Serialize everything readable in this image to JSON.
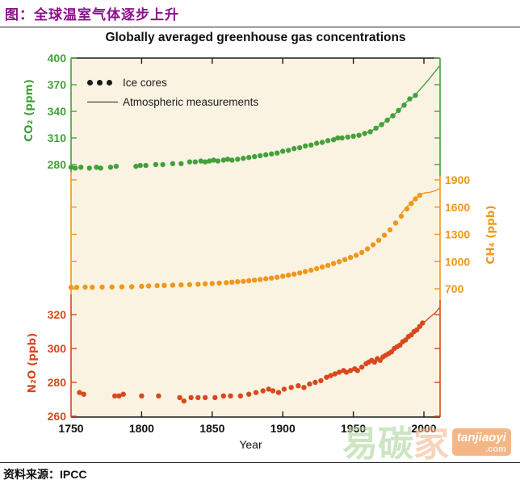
{
  "header": {
    "title": "图：全球温室气体逐步上升"
  },
  "source": {
    "label": "资料来源：",
    "value": "IPCC"
  },
  "watermark": {
    "char1": "易",
    "char2": "碳",
    "char3": "家",
    "site": "tanjiaoyi",
    "com": ".com"
  },
  "chart_data": {
    "type": "scatter",
    "title": "Globally averaged greenhouse gas concentrations",
    "xlabel": "Year",
    "x_range": [
      1750,
      2011.5
    ],
    "x_ticks": [
      1750,
      1800,
      1850,
      1900,
      1950,
      2000
    ],
    "grid": false,
    "legend_position": "top-left-inside",
    "legend": [
      {
        "label": "Ice cores",
        "marker": "dots"
      },
      {
        "label": "Atmospheric measurements",
        "marker": "line"
      }
    ],
    "plot_background": "#fbf3e2",
    "frame_colors": {
      "top": "#1a1a1a",
      "bottom": "#1a1a1a"
    },
    "series": [
      {
        "id": "CO2",
        "axis_label": "CO₂ (ppm)",
        "unit": "ppm",
        "color": "#43a13b",
        "tick_label_side": "left",
        "ticks": [
          280,
          310,
          340,
          370,
          400
        ],
        "ylim": [
          275,
          400
        ],
        "ice_cores": [
          [
            1750,
            277
          ],
          [
            1753,
            276
          ],
          [
            1757,
            277
          ],
          [
            1763,
            276
          ],
          [
            1768,
            277
          ],
          [
            1771,
            276
          ],
          [
            1778,
            277
          ],
          [
            1782,
            278
          ],
          [
            1796,
            278
          ],
          [
            1799,
            279
          ],
          [
            1803,
            279
          ],
          [
            1810,
            280
          ],
          [
            1815,
            280
          ],
          [
            1822,
            281
          ],
          [
            1828,
            281
          ],
          [
            1834,
            283
          ],
          [
            1838,
            283
          ],
          [
            1842,
            284
          ],
          [
            1845,
            283
          ],
          [
            1848,
            284
          ],
          [
            1851,
            285
          ],
          [
            1854,
            284
          ],
          [
            1858,
            285
          ],
          [
            1861,
            286
          ],
          [
            1864,
            285
          ],
          [
            1868,
            286
          ],
          [
            1872,
            287
          ],
          [
            1876,
            288
          ],
          [
            1880,
            289
          ],
          [
            1884,
            290
          ],
          [
            1888,
            291
          ],
          [
            1892,
            292
          ],
          [
            1896,
            293
          ],
          [
            1900,
            295
          ],
          [
            1904,
            296
          ],
          [
            1908,
            298
          ],
          [
            1912,
            299
          ],
          [
            1916,
            301
          ],
          [
            1920,
            302
          ],
          [
            1924,
            304
          ],
          [
            1928,
            305
          ],
          [
            1932,
            307
          ],
          [
            1936,
            308
          ],
          [
            1939,
            310
          ],
          [
            1942,
            310
          ],
          [
            1946,
            311
          ],
          [
            1950,
            312
          ],
          [
            1954,
            313
          ],
          [
            1958,
            315
          ],
          [
            1962,
            317
          ],
          [
            1966,
            321
          ],
          [
            1970,
            325
          ],
          [
            1974,
            330
          ],
          [
            1978,
            335
          ],
          [
            1982,
            341
          ],
          [
            1986,
            347
          ],
          [
            1990,
            354
          ],
          [
            1994,
            358
          ]
        ],
        "atmospheric": [
          [
            1958,
            315
          ],
          [
            1963,
            318
          ],
          [
            1968,
            323
          ],
          [
            1973,
            329
          ],
          [
            1978,
            335
          ],
          [
            1983,
            342
          ],
          [
            1988,
            351
          ],
          [
            1993,
            357
          ],
          [
            1998,
            366
          ],
          [
            2003,
            375
          ],
          [
            2008,
            385
          ],
          [
            2011,
            391
          ]
        ]
      },
      {
        "id": "CH4",
        "axis_label": "CH₄ (ppb)",
        "unit": "ppb",
        "color": "#f0971c",
        "tick_label_side": "right",
        "ticks": [
          700,
          1000,
          1300,
          1600,
          1900
        ],
        "ylim": [
          650,
          1900
        ],
        "ice_cores": [
          [
            1750,
            715
          ],
          [
            1754,
            716
          ],
          [
            1760,
            718
          ],
          [
            1765,
            717
          ],
          [
            1772,
            719
          ],
          [
            1779,
            720
          ],
          [
            1786,
            721
          ],
          [
            1793,
            722
          ],
          [
            1800,
            728
          ],
          [
            1805,
            731
          ],
          [
            1811,
            735
          ],
          [
            1816,
            737
          ],
          [
            1822,
            740
          ],
          [
            1828,
            743
          ],
          [
            1834,
            746
          ],
          [
            1840,
            750
          ],
          [
            1845,
            754
          ],
          [
            1850,
            758
          ],
          [
            1855,
            763
          ],
          [
            1860,
            768
          ],
          [
            1864,
            773
          ],
          [
            1868,
            778
          ],
          [
            1872,
            783
          ],
          [
            1876,
            789
          ],
          [
            1880,
            795
          ],
          [
            1884,
            802
          ],
          [
            1888,
            810
          ],
          [
            1892,
            818
          ],
          [
            1896,
            827
          ],
          [
            1900,
            838
          ],
          [
            1904,
            850
          ],
          [
            1908,
            862
          ],
          [
            1912,
            875
          ],
          [
            1916,
            890
          ],
          [
            1920,
            905
          ],
          [
            1924,
            922
          ],
          [
            1928,
            940
          ],
          [
            1932,
            958
          ],
          [
            1936,
            978
          ],
          [
            1940,
            1000
          ],
          [
            1944,
            1022
          ],
          [
            1948,
            1045
          ],
          [
            1952,
            1070
          ],
          [
            1956,
            1100
          ],
          [
            1960,
            1140
          ],
          [
            1964,
            1185
          ],
          [
            1968,
            1235
          ],
          [
            1972,
            1290
          ],
          [
            1976,
            1350
          ],
          [
            1980,
            1425
          ],
          [
            1984,
            1500
          ],
          [
            1988,
            1580
          ],
          [
            1991,
            1640
          ],
          [
            1994,
            1690
          ],
          [
            1997,
            1730
          ]
        ],
        "atmospheric": [
          [
            1984,
            1530
          ],
          [
            1988,
            1605
          ],
          [
            1992,
            1668
          ],
          [
            1996,
            1722
          ],
          [
            2000,
            1755
          ],
          [
            2004,
            1763
          ],
          [
            2008,
            1780
          ],
          [
            2011,
            1803
          ]
        ]
      },
      {
        "id": "N2O",
        "axis_label": "N₂O (ppb)",
        "unit": "ppb",
        "color": "#d9481c",
        "tick_label_side": "left",
        "ticks": [
          260,
          280,
          300,
          320
        ],
        "ylim": [
          260,
          325
        ],
        "ice_cores": [
          [
            1756,
            274
          ],
          [
            1759,
            273
          ],
          [
            1781,
            272
          ],
          [
            1784,
            272
          ],
          [
            1787,
            273
          ],
          [
            1800,
            272
          ],
          [
            1812,
            272
          ],
          [
            1827,
            271
          ],
          [
            1830,
            269
          ],
          [
            1835,
            271
          ],
          [
            1840,
            271
          ],
          [
            1845,
            271
          ],
          [
            1852,
            271
          ],
          [
            1858,
            272
          ],
          [
            1863,
            272
          ],
          [
            1870,
            272
          ],
          [
            1876,
            273
          ],
          [
            1881,
            274
          ],
          [
            1886,
            275
          ],
          [
            1890,
            276
          ],
          [
            1893,
            275
          ],
          [
            1897,
            274
          ],
          [
            1901,
            276
          ],
          [
            1906,
            277
          ],
          [
            1911,
            278
          ],
          [
            1915,
            277
          ],
          [
            1919,
            279
          ],
          [
            1923,
            280
          ],
          [
            1927,
            281
          ],
          [
            1931,
            283
          ],
          [
            1934,
            284
          ],
          [
            1937,
            285
          ],
          [
            1940,
            286
          ],
          [
            1943,
            287
          ],
          [
            1945,
            286
          ],
          [
            1948,
            287
          ],
          [
            1951,
            288
          ],
          [
            1953,
            287
          ],
          [
            1956,
            289
          ],
          [
            1959,
            291
          ],
          [
            1961,
            292
          ],
          [
            1963,
            293
          ],
          [
            1965,
            292
          ],
          [
            1967,
            294
          ],
          [
            1969,
            293
          ],
          [
            1971,
            295
          ],
          [
            1973,
            296
          ],
          [
            1975,
            297
          ],
          [
            1977,
            298
          ],
          [
            1979,
            300
          ],
          [
            1981,
            301
          ],
          [
            1983,
            302
          ],
          [
            1985,
            304
          ],
          [
            1987,
            305
          ],
          [
            1989,
            307
          ],
          [
            1991,
            308
          ],
          [
            1993,
            310
          ],
          [
            1995,
            311
          ],
          [
            1997,
            313
          ],
          [
            1999,
            315
          ]
        ],
        "atmospheric": [
          [
            1997,
            313
          ],
          [
            2001,
            316
          ],
          [
            2005,
            319
          ],
          [
            2008,
            321
          ],
          [
            2011,
            324
          ]
        ]
      }
    ]
  }
}
